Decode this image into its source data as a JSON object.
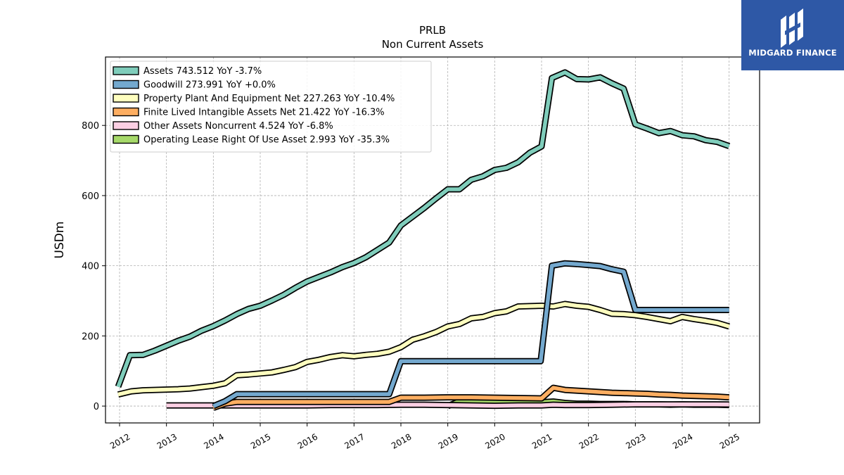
{
  "brand": {
    "name": "MIDGARD FINANCE",
    "bg_color": "#2e58a6"
  },
  "chart_data": {
    "type": "line",
    "title": "PRLB",
    "subtitle": "Non Current  Assets",
    "ylabel": "USDm",
    "xlabel": "",
    "xlim": [
      2011.7,
      2025.65
    ],
    "ylim": [
      -48,
      995
    ],
    "grid": true,
    "legend_position": "top-left",
    "x_ticks": [
      2012,
      2013,
      2014,
      2015,
      2016,
      2017,
      2018,
      2019,
      2020,
      2021,
      2022,
      2023,
      2024,
      2025
    ],
    "x_tick_labels": [
      "2012",
      "2013",
      "2014",
      "2015",
      "2016",
      "2017",
      "2018",
      "2019",
      "2020",
      "2021",
      "2022",
      "2023",
      "2024",
      "2025"
    ],
    "y_ticks": [
      0,
      200,
      400,
      600,
      800
    ],
    "y_tick_labels": [
      "0",
      "200",
      "400",
      "600",
      "800"
    ],
    "series": [
      {
        "name": "Operating Lease Right Of Use Asset",
        "legend_label": "Operating Lease Right Of Use Asset  2.993 YoY -35.3%",
        "color": "#a6d96a",
        "points": [
          [
            2019.0,
            0
          ],
          [
            2019.25,
            14
          ],
          [
            2019.5,
            14
          ],
          [
            2019.75,
            14
          ],
          [
            2020.0,
            13
          ],
          [
            2020.25,
            13
          ],
          [
            2020.5,
            12
          ],
          [
            2020.75,
            12
          ],
          [
            2021.0,
            11
          ],
          [
            2021.25,
            13
          ],
          [
            2021.5,
            9
          ],
          [
            2021.75,
            7
          ],
          [
            2022.0,
            7
          ],
          [
            2022.25,
            6
          ],
          [
            2022.5,
            6
          ],
          [
            2022.75,
            6
          ],
          [
            2023.0,
            5
          ],
          [
            2023.25,
            5
          ],
          [
            2023.5,
            5
          ],
          [
            2023.75,
            4
          ],
          [
            2024.0,
            5
          ],
          [
            2024.25,
            4
          ],
          [
            2024.5,
            4
          ],
          [
            2024.75,
            4
          ],
          [
            2025.0,
            3
          ]
        ]
      },
      {
        "name": "Other Assets Noncurrent",
        "legend_label": "Other Assets Noncurrent  4.524 YoY -6.8%",
        "color": "#fbcfe3",
        "points": [
          [
            2013.0,
            2
          ],
          [
            2013.5,
            2
          ],
          [
            2014.0,
            2
          ],
          [
            2014.5,
            2
          ],
          [
            2015.0,
            2
          ],
          [
            2015.5,
            2
          ],
          [
            2016.0,
            2
          ],
          [
            2016.5,
            3
          ],
          [
            2017.0,
            3
          ],
          [
            2017.5,
            3
          ],
          [
            2018.0,
            4
          ],
          [
            2018.5,
            4
          ],
          [
            2019.0,
            3
          ],
          [
            2019.5,
            2
          ],
          [
            2020.0,
            1
          ],
          [
            2020.5,
            2
          ],
          [
            2021.0,
            2
          ],
          [
            2021.25,
            4
          ],
          [
            2021.5,
            3
          ],
          [
            2022.0,
            3
          ],
          [
            2022.5,
            4
          ],
          [
            2023.0,
            5
          ],
          [
            2023.5,
            5
          ],
          [
            2024.0,
            5
          ],
          [
            2024.5,
            5
          ],
          [
            2025.0,
            4.5
          ]
        ]
      },
      {
        "name": "Finite Lived Intangible Assets Net",
        "legend_label": "Finite Lived Intangible Assets Net  21.422 YoY -16.3%",
        "color": "#fdae61",
        "points": [
          [
            2014.0,
            -5
          ],
          [
            2014.25,
            7
          ],
          [
            2014.5,
            12
          ],
          [
            2015.0,
            12
          ],
          [
            2015.5,
            12
          ],
          [
            2016.0,
            12
          ],
          [
            2016.5,
            12
          ],
          [
            2017.0,
            12
          ],
          [
            2017.5,
            12
          ],
          [
            2017.75,
            12
          ],
          [
            2018.0,
            24
          ],
          [
            2018.5,
            24
          ],
          [
            2019.0,
            25
          ],
          [
            2019.5,
            25
          ],
          [
            2020.0,
            24
          ],
          [
            2020.5,
            23
          ],
          [
            2021.0,
            22
          ],
          [
            2021.25,
            52
          ],
          [
            2021.5,
            46
          ],
          [
            2021.75,
            44
          ],
          [
            2022.0,
            42
          ],
          [
            2022.25,
            40
          ],
          [
            2022.5,
            38
          ],
          [
            2022.75,
            37
          ],
          [
            2023.0,
            36
          ],
          [
            2023.25,
            35
          ],
          [
            2023.5,
            33
          ],
          [
            2023.75,
            32
          ],
          [
            2024.0,
            30
          ],
          [
            2024.25,
            29
          ],
          [
            2024.5,
            28
          ],
          [
            2024.75,
            27
          ],
          [
            2025.0,
            25
          ]
        ]
      },
      {
        "name": "Property Plant And Equipment Net",
        "legend_label": "Property Plant And Equipment Net  227.263 YoY -10.4%",
        "color": "#ffffbf",
        "points": [
          [
            2011.97,
            33
          ],
          [
            2012.25,
            42
          ],
          [
            2012.5,
            45
          ],
          [
            2012.75,
            46
          ],
          [
            2013.0,
            47
          ],
          [
            2013.25,
            48
          ],
          [
            2013.5,
            50
          ],
          [
            2013.75,
            54
          ],
          [
            2014.0,
            58
          ],
          [
            2014.25,
            65
          ],
          [
            2014.5,
            88
          ],
          [
            2014.75,
            90
          ],
          [
            2015.0,
            93
          ],
          [
            2015.25,
            96
          ],
          [
            2015.5,
            103
          ],
          [
            2015.75,
            111
          ],
          [
            2016.0,
            126
          ],
          [
            2016.25,
            132
          ],
          [
            2016.5,
            140
          ],
          [
            2016.75,
            145
          ],
          [
            2017.0,
            142
          ],
          [
            2017.25,
            146
          ],
          [
            2017.5,
            149
          ],
          [
            2017.75,
            155
          ],
          [
            2018.0,
            168
          ],
          [
            2018.25,
            189
          ],
          [
            2018.5,
            199
          ],
          [
            2018.75,
            211
          ],
          [
            2019.0,
            227
          ],
          [
            2019.25,
            234
          ],
          [
            2019.5,
            250
          ],
          [
            2019.75,
            254
          ],
          [
            2020.0,
            265
          ],
          [
            2020.25,
            270
          ],
          [
            2020.5,
            284
          ],
          [
            2020.75,
            285
          ],
          [
            2021.0,
            286
          ],
          [
            2021.25,
            284
          ],
          [
            2021.5,
            291
          ],
          [
            2021.75,
            286
          ],
          [
            2022.0,
            283
          ],
          [
            2022.25,
            274
          ],
          [
            2022.5,
            263
          ],
          [
            2022.75,
            262
          ],
          [
            2023.0,
            259
          ],
          [
            2023.25,
            254
          ],
          [
            2023.5,
            248
          ],
          [
            2023.75,
            242
          ],
          [
            2024.0,
            254
          ],
          [
            2024.25,
            248
          ],
          [
            2024.5,
            243
          ],
          [
            2024.75,
            237
          ],
          [
            2025.0,
            227
          ]
        ]
      },
      {
        "name": "Goodwill",
        "legend_label": "Goodwill  273.991 YoY +0.0%",
        "color": "#74a9cf",
        "points": [
          [
            2014.0,
            0
          ],
          [
            2014.25,
            14
          ],
          [
            2014.5,
            34
          ],
          [
            2014.75,
            34
          ],
          [
            2015.0,
            34
          ],
          [
            2015.5,
            34
          ],
          [
            2016.0,
            34
          ],
          [
            2016.5,
            34
          ],
          [
            2017.0,
            34
          ],
          [
            2017.5,
            34
          ],
          [
            2017.75,
            34
          ],
          [
            2018.0,
            128
          ],
          [
            2018.5,
            128
          ],
          [
            2019.0,
            128
          ],
          [
            2019.5,
            128
          ],
          [
            2020.0,
            128
          ],
          [
            2020.5,
            128
          ],
          [
            2020.98,
            128
          ],
          [
            2021.22,
            400
          ],
          [
            2021.5,
            407
          ],
          [
            2021.75,
            405
          ],
          [
            2022.0,
            402
          ],
          [
            2022.25,
            399
          ],
          [
            2022.5,
            390
          ],
          [
            2022.75,
            383
          ],
          [
            2023.0,
            274
          ],
          [
            2023.5,
            274
          ],
          [
            2024.0,
            274
          ],
          [
            2024.5,
            274
          ],
          [
            2025.0,
            274
          ]
        ]
      },
      {
        "name": "Assets",
        "legend_label": "Assets  743.512 YoY -3.7%",
        "color": "#7fcdbb",
        "points": [
          [
            2011.97,
            55
          ],
          [
            2012.22,
            145
          ],
          [
            2012.5,
            146
          ],
          [
            2012.75,
            158
          ],
          [
            2013.0,
            172
          ],
          [
            2013.25,
            186
          ],
          [
            2013.5,
            198
          ],
          [
            2013.75,
            215
          ],
          [
            2014.0,
            228
          ],
          [
            2014.25,
            244
          ],
          [
            2014.5,
            262
          ],
          [
            2014.75,
            277
          ],
          [
            2015.0,
            286
          ],
          [
            2015.25,
            301
          ],
          [
            2015.5,
            317
          ],
          [
            2015.75,
            337
          ],
          [
            2016.0,
            355
          ],
          [
            2016.25,
            368
          ],
          [
            2016.5,
            381
          ],
          [
            2016.75,
            396
          ],
          [
            2017.0,
            408
          ],
          [
            2017.25,
            424
          ],
          [
            2017.5,
            445
          ],
          [
            2017.75,
            466
          ],
          [
            2018.0,
            515
          ],
          [
            2018.25,
            540
          ],
          [
            2018.5,
            565
          ],
          [
            2018.75,
            592
          ],
          [
            2019.0,
            618
          ],
          [
            2019.25,
            618
          ],
          [
            2019.5,
            645
          ],
          [
            2019.75,
            655
          ],
          [
            2020.0,
            673
          ],
          [
            2020.25,
            679
          ],
          [
            2020.5,
            695
          ],
          [
            2020.75,
            722
          ],
          [
            2021.0,
            740
          ],
          [
            2021.22,
            935
          ],
          [
            2021.5,
            951
          ],
          [
            2021.75,
            932
          ],
          [
            2022.0,
            931
          ],
          [
            2022.25,
            937
          ],
          [
            2022.5,
            920
          ],
          [
            2022.75,
            905
          ],
          [
            2023.0,
            803
          ],
          [
            2023.25,
            791
          ],
          [
            2023.5,
            778
          ],
          [
            2023.75,
            784
          ],
          [
            2024.0,
            772
          ],
          [
            2024.25,
            769
          ],
          [
            2024.5,
            758
          ],
          [
            2024.75,
            753
          ],
          [
            2025.0,
            741
          ]
        ]
      }
    ]
  }
}
